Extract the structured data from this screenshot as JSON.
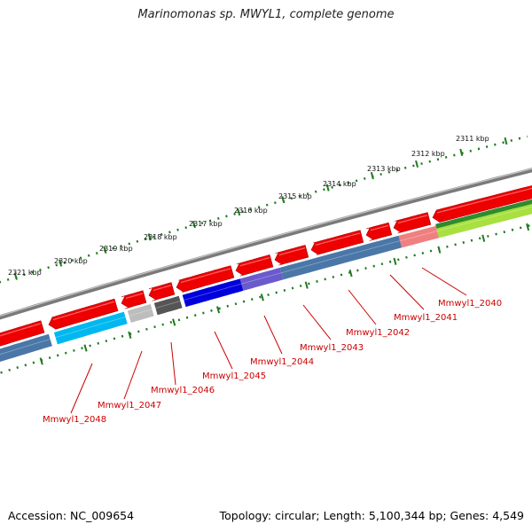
{
  "title": "Marinomonas sp. MWYL1, complete genome",
  "footer": {
    "accession": "Accession: NC_009654",
    "summary": "Topology: circular; Length: 5,100,344 bp; Genes: 4,549"
  },
  "ruler": {
    "ticks": [
      {
        "label": "2321 kbp",
        "value_kbp": 2321
      },
      {
        "label": "2320 kbp",
        "value_kbp": 2320
      },
      {
        "label": "2319 kbp",
        "value_kbp": 2319
      },
      {
        "label": "2318 kbp",
        "value_kbp": 2318
      },
      {
        "label": "2317 kbp",
        "value_kbp": 2317
      },
      {
        "label": "2316 kbp",
        "value_kbp": 2316
      },
      {
        "label": "2315 kbp",
        "value_kbp": 2315
      },
      {
        "label": "2314 kbp",
        "value_kbp": 2314
      },
      {
        "label": "2313 kbp",
        "value_kbp": 2313
      },
      {
        "label": "2312 kbp",
        "value_kbp": 2312
      },
      {
        "label": "2311 kbp",
        "value_kbp": 2311
      }
    ]
  },
  "genes": [
    {
      "label": "Mmwyl1_2048"
    },
    {
      "label": "Mmwyl1_2047"
    },
    {
      "label": "Mmwyl1_2046"
    },
    {
      "label": "Mmwyl1_2045"
    },
    {
      "label": "Mmwyl1_2044"
    },
    {
      "label": "Mmwyl1_2043"
    },
    {
      "label": "Mmwyl1_2042"
    },
    {
      "label": "Mmwyl1_2041"
    },
    {
      "label": "Mmwyl1_2040"
    }
  ],
  "colors": {
    "backbone": "#7a7a7a",
    "forward_cds": "#ee0000",
    "label_red": "#cc0000",
    "ruler_green": "#1f7a1f",
    "steelblue": "#4a77a8",
    "cyan": "#00b8f0",
    "light_gray": "#bdbdbd",
    "dark_gray": "#555555",
    "blue": "#0000dd",
    "slate_blue": "#6a5acd",
    "salmon": "#f08080",
    "dark_green": "#2e8b2e",
    "lime": "#a8e040"
  }
}
